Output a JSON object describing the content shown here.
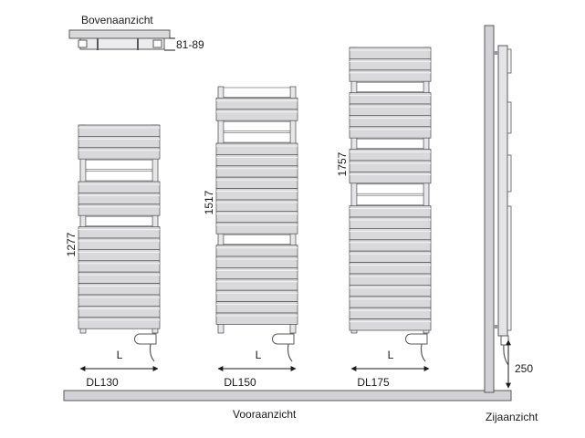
{
  "labels": {
    "top_view": "Bovenaanzicht",
    "top_depth": "81-89",
    "front_view": "Vooraanzicht",
    "side_view": "Zijaanzicht",
    "side_height": "250"
  },
  "radiators": [
    {
      "model": "DL130",
      "height": "1277",
      "width_label": "L"
    },
    {
      "model": "DL150",
      "height": "1517",
      "width_label": "L"
    },
    {
      "model": "DL175",
      "height": "1757",
      "width_label": "L"
    }
  ],
  "colors": {
    "panel": "#d9d9dc",
    "panel_stroke": "#5a5a5a",
    "floor": "#d2d2d6",
    "ink": "#1a1a1a"
  }
}
